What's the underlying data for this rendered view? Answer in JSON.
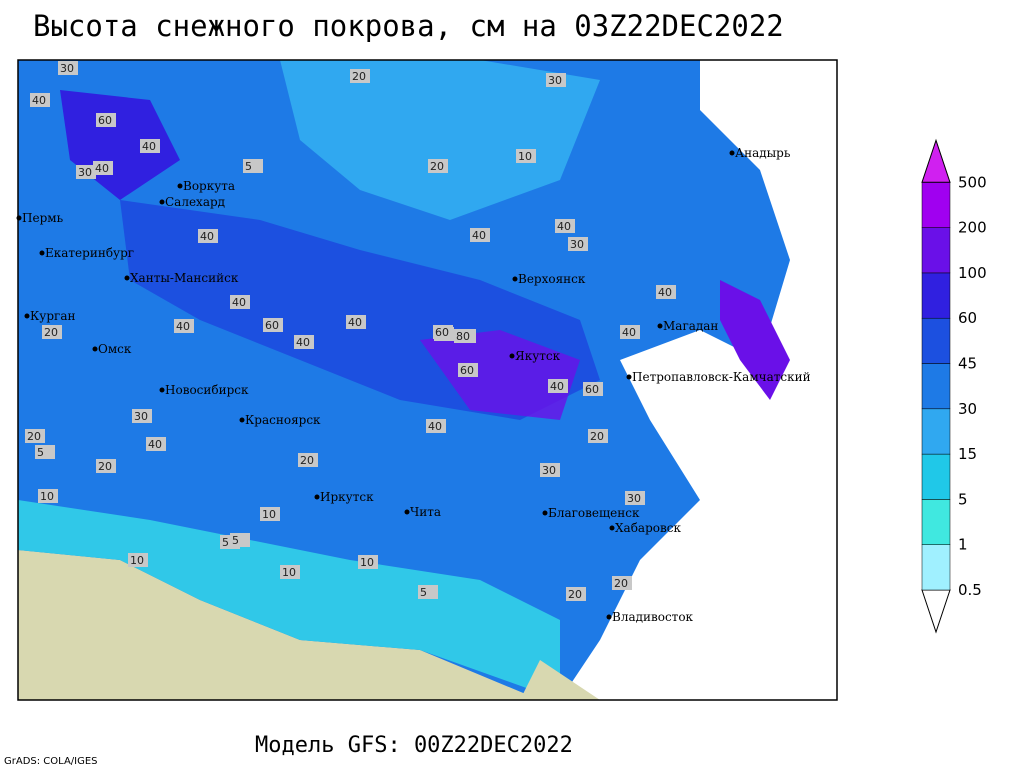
{
  "title": "Высота снежного покрова, см на 03Z22DEC2022",
  "model_line": "Модель GFS: 00Z22DEC2022",
  "credit": "GrADS: COLA/IGES",
  "legend": {
    "levels": [
      0.5,
      1,
      5,
      15,
      30,
      45,
      60,
      100,
      200,
      500
    ],
    "colors": [
      "#a0f0ff",
      "#40e8e0",
      "#20c8e8",
      "#30a8f0",
      "#1e7ae6",
      "#1c50e0",
      "#3020e0",
      "#6a10e8",
      "#a000f0"
    ],
    "under_color": "#ffffff",
    "over_color": "#d020f0"
  },
  "cities": [
    "Воркута",
    "Салехард",
    "Пермь",
    "Екатеринбург",
    "Ханты-Мансийск",
    "Курган",
    "Омск",
    "Новосибирск",
    "Красноярск",
    "Иркутск",
    "Чита",
    "Благовещенск",
    "Хабаровск",
    "Владивосток",
    "Якутск",
    "Верхоянск",
    "Магадан",
    "Петропавловск-Камчатский",
    "Анадырь"
  ],
  "contour_labels": [
    30,
    40,
    60,
    40,
    30,
    40,
    20,
    30,
    20,
    20,
    10,
    5,
    40,
    40,
    40,
    40,
    60,
    40,
    40,
    40,
    80,
    60,
    60,
    40,
    30,
    40,
    40,
    40,
    40,
    20,
    30,
    10,
    20,
    5,
    10,
    10,
    10,
    5,
    10,
    30,
    30,
    20,
    20,
    5,
    5,
    40,
    60,
    40,
    20,
    20
  ]
}
